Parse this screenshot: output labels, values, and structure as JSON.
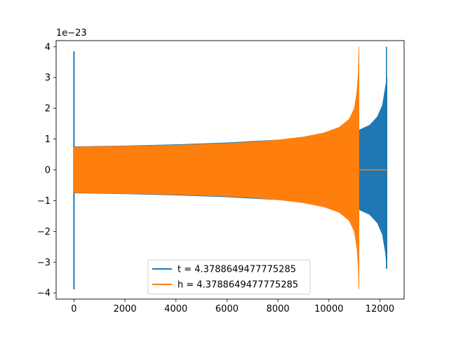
{
  "chart_data": {
    "type": "line",
    "title": "",
    "xlabel": "",
    "ylabel": "",
    "y_offset_label": "1e−23",
    "xlim": [
      -700,
      12950
    ],
    "ylim": [
      -4.2,
      4.2
    ],
    "x_ticks": [
      0,
      2000,
      4000,
      6000,
      8000,
      10000,
      12000
    ],
    "y_ticks": [
      -4,
      -3,
      -2,
      -1,
      0,
      1,
      2,
      3,
      4
    ],
    "x_tick_labels": [
      "0",
      "2000",
      "4000",
      "6000",
      "8000",
      "10000",
      "12000"
    ],
    "y_tick_labels": [
      "−4",
      "−3",
      "−2",
      "−1",
      "0",
      "1",
      "2",
      "3",
      "4"
    ],
    "grid": false,
    "legend_position": "lower-center",
    "series": [
      {
        "name": "t = 4.3788649477775285",
        "color": "#1f77b4",
        "spike": {
          "x": 0,
          "upper": 3.85,
          "lower": -3.88
        },
        "envelope": [
          {
            "x": 0,
            "upper": 0.75,
            "lower": -0.75
          },
          {
            "x": 2000,
            "upper": 0.78,
            "lower": -0.78
          },
          {
            "x": 4000,
            "upper": 0.82,
            "lower": -0.82
          },
          {
            "x": 6000,
            "upper": 0.88,
            "lower": -0.88
          },
          {
            "x": 8000,
            "upper": 0.97,
            "lower": -0.97
          },
          {
            "x": 9500,
            "upper": 1.07,
            "lower": -1.07
          },
          {
            "x": 10500,
            "upper": 1.17,
            "lower": -1.17
          },
          {
            "x": 11200,
            "upper": 1.3,
            "lower": -1.3
          },
          {
            "x": 11600,
            "upper": 1.45,
            "lower": -1.45
          },
          {
            "x": 11900,
            "upper": 1.72,
            "lower": -1.72
          },
          {
            "x": 12100,
            "upper": 2.1,
            "lower": -2.1
          },
          {
            "x": 12220,
            "upper": 2.7,
            "lower": -2.7
          },
          {
            "x": 12280,
            "upper": 3.0,
            "lower": -3.2
          }
        ],
        "peak": {
          "x": 12260,
          "upper": 4.0,
          "lower": -3.22
        },
        "tail": [
          {
            "x": 12260,
            "y": 0
          },
          {
            "x": 12300,
            "y": 0
          }
        ]
      },
      {
        "name": "h = 4.3788649477775285",
        "color": "#ff7f0e",
        "envelope": [
          {
            "x": 0,
            "upper": 0.74,
            "lower": -0.74
          },
          {
            "x": 2000,
            "upper": 0.77,
            "lower": -0.77
          },
          {
            "x": 4000,
            "upper": 0.8,
            "lower": -0.8
          },
          {
            "x": 6000,
            "upper": 0.86,
            "lower": -0.86
          },
          {
            "x": 7000,
            "upper": 0.9,
            "lower": -0.9
          },
          {
            "x": 8000,
            "upper": 0.97,
            "lower": -0.97
          },
          {
            "x": 9000,
            "upper": 1.07,
            "lower": -1.07
          },
          {
            "x": 9800,
            "upper": 1.2,
            "lower": -1.2
          },
          {
            "x": 10400,
            "upper": 1.38,
            "lower": -1.38
          },
          {
            "x": 10800,
            "upper": 1.65,
            "lower": -1.65
          },
          {
            "x": 11000,
            "upper": 2.0,
            "lower": -2.0
          },
          {
            "x": 11100,
            "upper": 2.55,
            "lower": -2.55
          },
          {
            "x": 11150,
            "upper": 3.1,
            "lower": -3.1
          },
          {
            "x": 11180,
            "upper": 4.0,
            "lower": -3.88
          }
        ],
        "tail": [
          {
            "x": 11190,
            "y": 0
          },
          {
            "x": 12300,
            "y": 0
          }
        ]
      }
    ]
  }
}
